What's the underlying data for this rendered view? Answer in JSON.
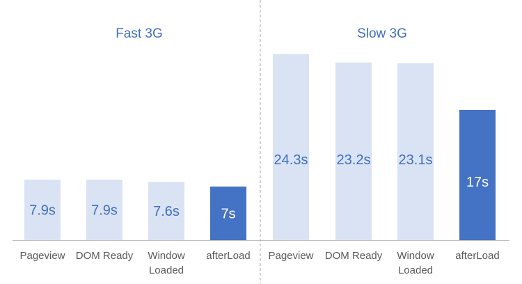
{
  "chart_data": [
    {
      "type": "bar",
      "title": "Fast 3G",
      "categories": [
        "Pageview",
        "DOM Ready",
        "Window Loaded",
        "afterLoad"
      ],
      "values": [
        7.9,
        7.9,
        7.6,
        7
      ],
      "data_labels": [
        "7.9s",
        "7.9s",
        "7.6s",
        "7s"
      ],
      "unit": "s",
      "highlight_index": 3,
      "ylim": [
        0,
        25
      ],
      "grid": false,
      "colors": {
        "bar": "#dae3f3",
        "highlight": "#4472c4",
        "label": "#3f6fbf",
        "highlight_label": "#ffffff"
      }
    },
    {
      "type": "bar",
      "title": "Slow 3G",
      "categories": [
        "Pageview",
        "DOM Ready",
        "Window Loaded",
        "afterLoad"
      ],
      "values": [
        24.3,
        23.2,
        23.1,
        17
      ],
      "data_labels": [
        "24.3s",
        "23.2s",
        "23.1s",
        "17s"
      ],
      "unit": "s",
      "highlight_index": 3,
      "ylim": [
        0,
        25
      ],
      "grid": false,
      "colors": {
        "bar": "#dae3f3",
        "highlight": "#4472c4",
        "label": "#3f6fbf",
        "highlight_label": "#ffffff"
      }
    }
  ],
  "colors": {
    "title": "#3f6fbf",
    "axis": "#bfbfbf",
    "divider": "#a6a6a6",
    "tick_text": "#595959"
  }
}
